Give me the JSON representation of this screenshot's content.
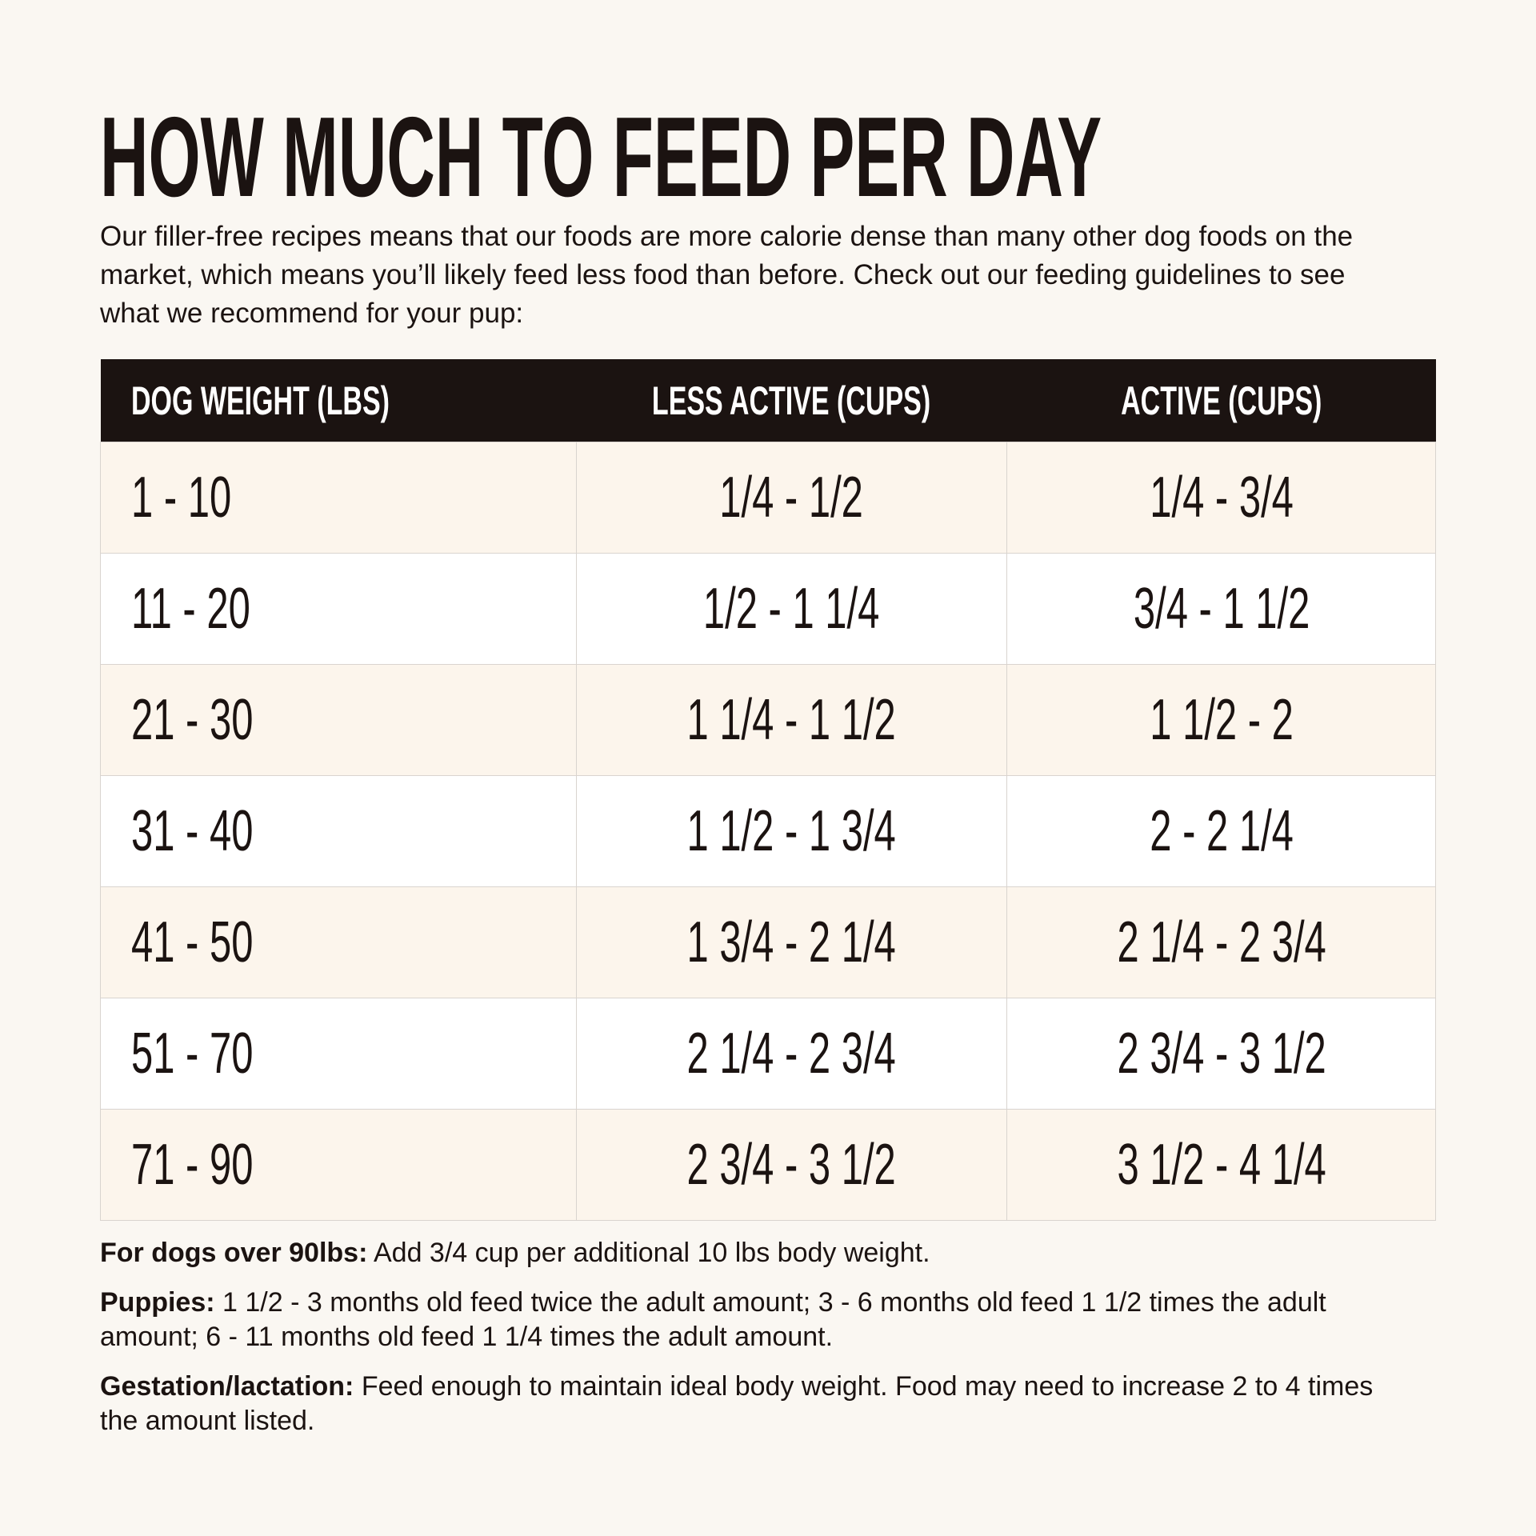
{
  "title": "HOW MUCH TO FEED PER DAY",
  "intro": "Our filler-free recipes means that our foods are more calorie dense than many other dog foods on the market, which means you’ll likely feed less food than before. Check out our feeding guidelines to see what we recommend for your pup:",
  "table": {
    "headers": [
      "DOG WEIGHT (LBS)",
      "LESS ACTIVE (CUPS)",
      "ACTIVE (CUPS)"
    ],
    "rows": [
      [
        "1 - 10",
        "1/4 - 1/2",
        "1/4 - 3/4"
      ],
      [
        "11 - 20",
        "1/2 - 1 1/4",
        "3/4 - 1 1/2"
      ],
      [
        "21 - 30",
        "1 1/4 - 1 1/2",
        "1 1/2 - 2"
      ],
      [
        "31 - 40",
        "1 1/2 - 1 3/4",
        "2 - 2 1/4"
      ],
      [
        "41 - 50",
        "1 3/4 - 2 1/4",
        "2 1/4 - 2 3/4"
      ],
      [
        "51 - 70",
        "2 1/4 - 2 3/4",
        "2 3/4 - 3 1/2"
      ],
      [
        "71 - 90",
        "2 3/4 - 3 1/2",
        "3 1/2 - 4 1/4"
      ]
    ]
  },
  "notes": [
    {
      "label": "For dogs over 90lbs:",
      "text": " Add 3/4 cup per additional 10 lbs body weight."
    },
    {
      "label": "Puppies:",
      "text": " 1 1/2 - 3 months old feed twice the adult amount; 3 - 6 months old feed 1 1/2 times the adult amount; 6 - 11 months old feed 1 1/4 times the adult amount."
    },
    {
      "label": "Gestation/lactation:",
      "text": " Feed enough to maintain ideal body weight. Food may need to increase 2 to 4 times the amount listed."
    }
  ],
  "colors": {
    "background": "#faf7f2",
    "header": "#1b1311",
    "row_alt": "#fcf5ec",
    "row": "#ffffff"
  }
}
